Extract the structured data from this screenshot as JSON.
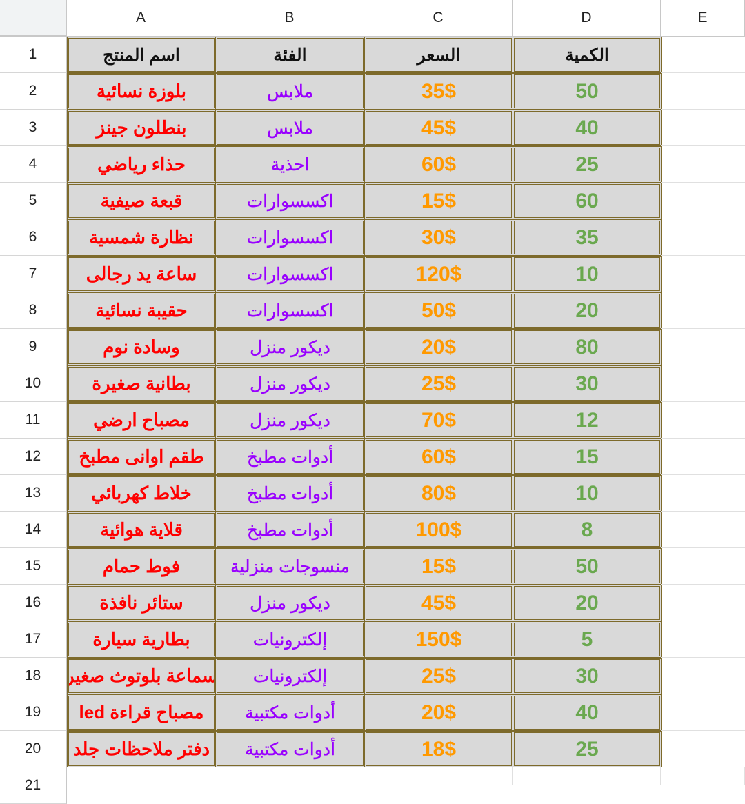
{
  "columns": [
    "A",
    "B",
    "C",
    "D",
    "E"
  ],
  "header": [
    "اسم المنتج",
    "الفئة",
    "السعر",
    "الكمية"
  ],
  "rows": [
    [
      "بلوزة نسائية",
      "ملابس",
      "35$",
      "50"
    ],
    [
      "بنطلون جينز",
      "ملابس",
      "45$",
      "40"
    ],
    [
      "حذاء رياضي",
      "احذية",
      "60$",
      "25"
    ],
    [
      "قبعة صيفية",
      "اكسسوارات",
      "15$",
      "60"
    ],
    [
      "نظارة شمسية",
      "اكسسوارات",
      "30$",
      "35"
    ],
    [
      "ساعة يد رجالى",
      "اكسسوارات",
      "120$",
      "10"
    ],
    [
      "حقيبة نسائية",
      "اكسسوارات",
      "50$",
      "20"
    ],
    [
      "وسادة نوم",
      "ديكور منزل",
      "20$",
      "80"
    ],
    [
      "بطانية صغيرة",
      "ديكور منزل",
      "25$",
      "30"
    ],
    [
      "مصباح ارضي",
      "ديكور منزل",
      "70$",
      "12"
    ],
    [
      "طقم اوانى مطبخ",
      "أدوات مطبخ",
      "60$",
      "15"
    ],
    [
      "خلاط كهربائي",
      "أدوات مطبخ",
      "80$",
      "10"
    ],
    [
      "قلاية هوائية",
      "أدوات مطبخ",
      "100$",
      "8"
    ],
    [
      "فوط حمام",
      "منسوجات منزلية",
      "15$",
      "50"
    ],
    [
      "ستائر نافذة",
      "ديكور منزل",
      "45$",
      "20"
    ],
    [
      "بطارية سيارة",
      "إلكترونيات",
      "150$",
      "5"
    ],
    [
      "سماعة بلوتوث صغير",
      "إلكترونيات",
      "25$",
      "30"
    ],
    [
      "مصباح قراءة led",
      "أدوات مكتبية",
      "20$",
      "40"
    ],
    [
      "دفتر ملاحظات جلد",
      "أدوات مكتبية",
      "18$",
      "25"
    ]
  ],
  "row_numbers": [
    "1",
    "2",
    "3",
    "4",
    "5",
    "6",
    "7",
    "8",
    "9",
    "10",
    "11",
    "12",
    "13",
    "14",
    "15",
    "16",
    "17",
    "18",
    "19",
    "20",
    "21"
  ],
  "colors": {
    "name": "#ff0000",
    "category": "#9900ff",
    "price": "#ff9900",
    "quantity": "#6aa84f",
    "cell_bg": "#d9d9d9",
    "border": "#7d6a2b"
  }
}
